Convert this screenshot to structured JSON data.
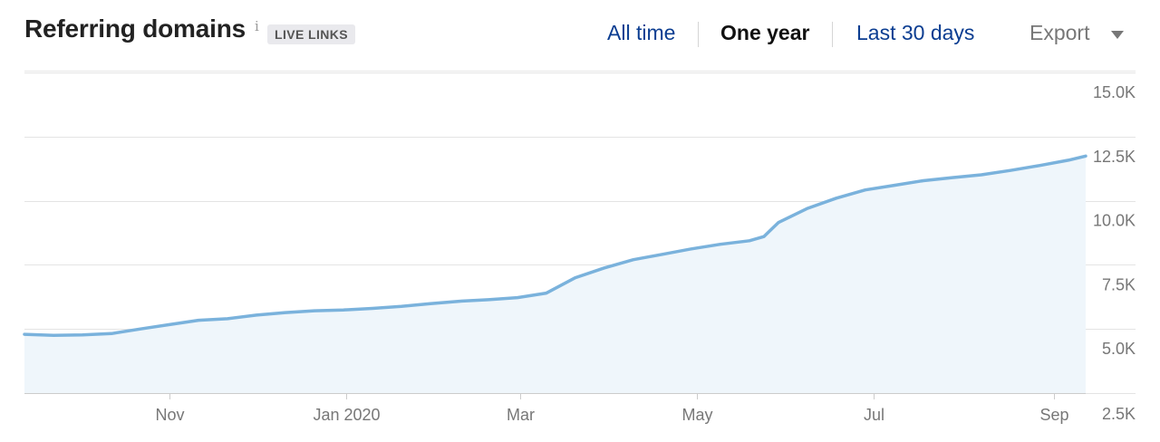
{
  "header": {
    "title": "Referring domains",
    "info_glyph": "i",
    "badge": "LIVE LINKS",
    "ranges": [
      "All time",
      "One year",
      "Last 30 days"
    ],
    "active_range": "One year",
    "export_label": "Export",
    "export_icon": "chevron-down-icon"
  },
  "colors": {
    "line": "#7ab2dc",
    "area": "#eff6fb",
    "grid": "#e4e4e4",
    "active_range": "#111111",
    "link": "#0b3d91"
  },
  "chart_data": {
    "type": "area",
    "title": "Referring domains",
    "xlabel": "",
    "ylabel": "",
    "x_tick_labels": [
      "Nov",
      "Jan 2020",
      "Mar",
      "May",
      "Jul",
      "Sep"
    ],
    "x_tick_dates": [
      "2019-11-01",
      "2020-01-01",
      "2020-03-01",
      "2020-05-01",
      "2020-07-01",
      "2020-09-01"
    ],
    "x_range": [
      "2019-09-12",
      "2020-09-12"
    ],
    "y_tick_labels": [
      "2.5K",
      "5.0K",
      "7.5K",
      "10.0K",
      "12.5K",
      "15.0K"
    ],
    "y_tick_values": [
      2500,
      5000,
      7500,
      10000,
      12500,
      15000
    ],
    "ylim": [
      2500,
      15000
    ],
    "grid": true,
    "legend": "none",
    "series": [
      {
        "x": [
          "2019-09-12",
          "2019-09-22",
          "2019-10-02",
          "2019-10-12",
          "2019-10-22",
          "2019-11-01",
          "2019-11-11",
          "2019-11-21",
          "2019-12-01",
          "2019-12-11",
          "2019-12-21",
          "2019-12-31",
          "2020-01-10",
          "2020-01-20",
          "2020-01-30",
          "2020-02-09",
          "2020-02-19",
          "2020-02-29",
          "2020-03-10",
          "2020-03-20",
          "2020-03-30",
          "2020-04-09",
          "2020-04-19",
          "2020-04-29",
          "2020-05-09",
          "2020-05-19",
          "2020-05-24",
          "2020-05-29",
          "2020-06-08",
          "2020-06-18",
          "2020-06-28",
          "2020-07-08",
          "2020-07-18",
          "2020-07-28",
          "2020-08-07",
          "2020-08-17",
          "2020-08-27",
          "2020-09-06",
          "2020-09-12"
        ],
        "y": [
          4790,
          4750,
          4770,
          4820,
          5000,
          5170,
          5340,
          5400,
          5540,
          5640,
          5710,
          5740,
          5800,
          5880,
          5990,
          6080,
          6140,
          6220,
          6400,
          7000,
          7380,
          7700,
          7910,
          8120,
          8300,
          8440,
          8600,
          9150,
          9700,
          10100,
          10420,
          10600,
          10780,
          10900,
          11010,
          11180,
          11370,
          11580,
          11740
        ]
      }
    ]
  }
}
